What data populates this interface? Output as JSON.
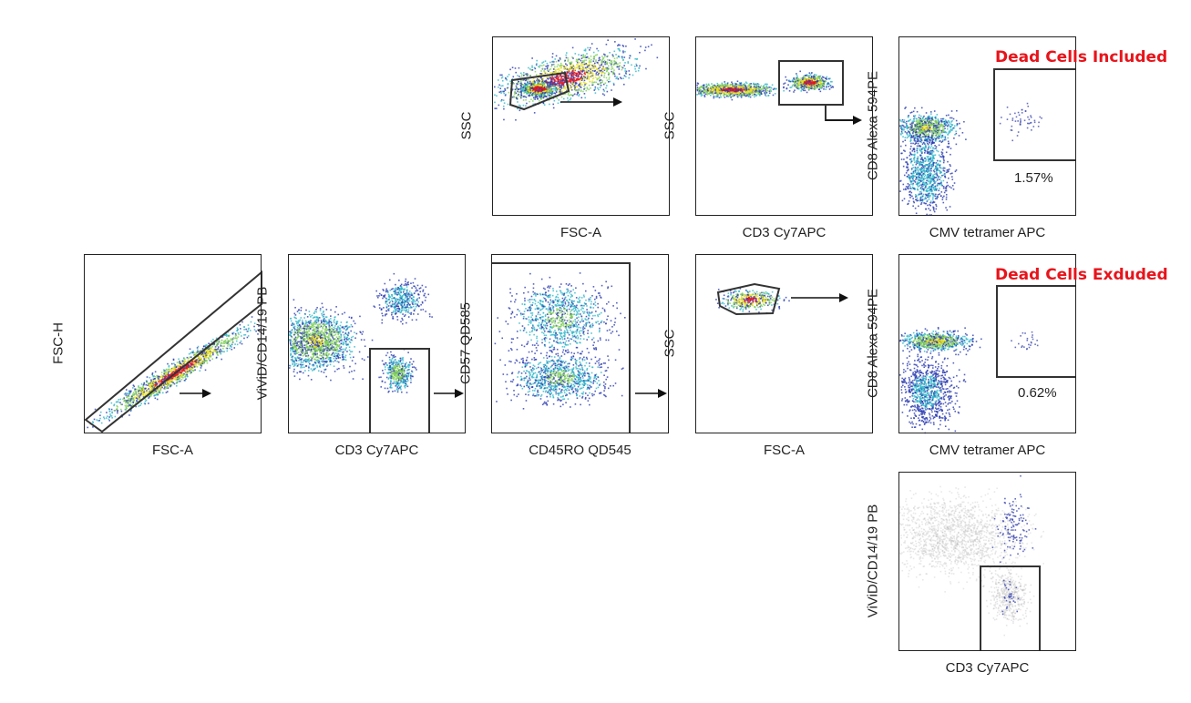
{
  "chart_data": [
    {
      "id": "p1",
      "type": "scatter",
      "xlabel": "FSC-A",
      "ylabel": "SSC",
      "gate": "polygon lymphocyte gate",
      "arrow": true
    },
    {
      "id": "p2",
      "type": "scatter",
      "xlabel": "CD3 Cy7APC",
      "ylabel": "SSC",
      "gate": "rectangle CD3+",
      "arrow": true
    },
    {
      "id": "p3",
      "type": "scatter",
      "xlabel": "CMV tetramer APC",
      "ylabel": "CD8 Alexa 594PE",
      "title": "Dead Cells Included",
      "annotation": "1.57%"
    },
    {
      "id": "a",
      "type": "scatter",
      "xlabel": "FSC-A",
      "ylabel": "FSC-H",
      "gate": "singlets",
      "arrow": true
    },
    {
      "id": "b",
      "type": "scatter",
      "xlabel": "CD3 Cy7APC",
      "ylabel": "ViViD/CD14/19 PB",
      "gate": "live CD3+",
      "arrow": true
    },
    {
      "id": "c",
      "type": "scatter",
      "xlabel": "CD45RO QD545",
      "ylabel": "CD57 QD585",
      "gate": "rectangle",
      "arrow": true
    },
    {
      "id": "d",
      "type": "scatter",
      "xlabel": "FSC-A",
      "ylabel": "SSC",
      "gate": "polygon lymphocyte gate",
      "arrow": true
    },
    {
      "id": "e",
      "type": "scatter",
      "xlabel": "CMV tetramer APC",
      "ylabel": "CD8 Alexa 594PE",
      "title": "Dead Cells Exduded",
      "annotation": "0.62%"
    },
    {
      "id": "f",
      "type": "scatter",
      "xlabel": "CD3 Cy7APC",
      "ylabel": "ViViD/CD14/19 PB",
      "gate": "live CD3+ overlay"
    }
  ],
  "colors": {
    "title": "#e8141b",
    "low": "#2b3bb0",
    "mid": "#2fb8c8",
    "high": "#e6e020",
    "peak": "#e8141b",
    "gate": "#333333"
  }
}
